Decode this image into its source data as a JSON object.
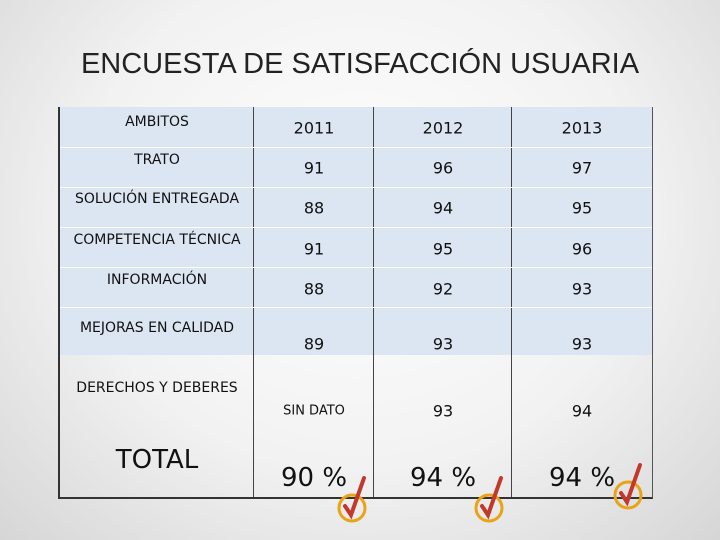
{
  "title": "ENCUESTA DE SATISFACCIÓN USUARIA",
  "table": {
    "header": [
      "AMBITOS",
      "2011",
      "2012",
      "2013"
    ],
    "rows": [
      [
        "TRATO",
        91,
        96,
        97
      ],
      [
        "SOLUCIÓN ENTREGADA",
        88,
        94,
        95
      ],
      [
        "COMPETENCIA TÉCNICA",
        91,
        95,
        96
      ],
      [
        "INFORMACIÓN",
        88,
        92,
        93
      ],
      [
        "MEJORAS EN CALIDAD",
        89,
        93,
        93
      ],
      [
        "DERECHOS Y DEBERES",
        "SIN DATO",
        93,
        94
      ],
      [
        "TOTAL",
        "90 %",
        "94 %",
        "94 %"
      ]
    ]
  }
}
